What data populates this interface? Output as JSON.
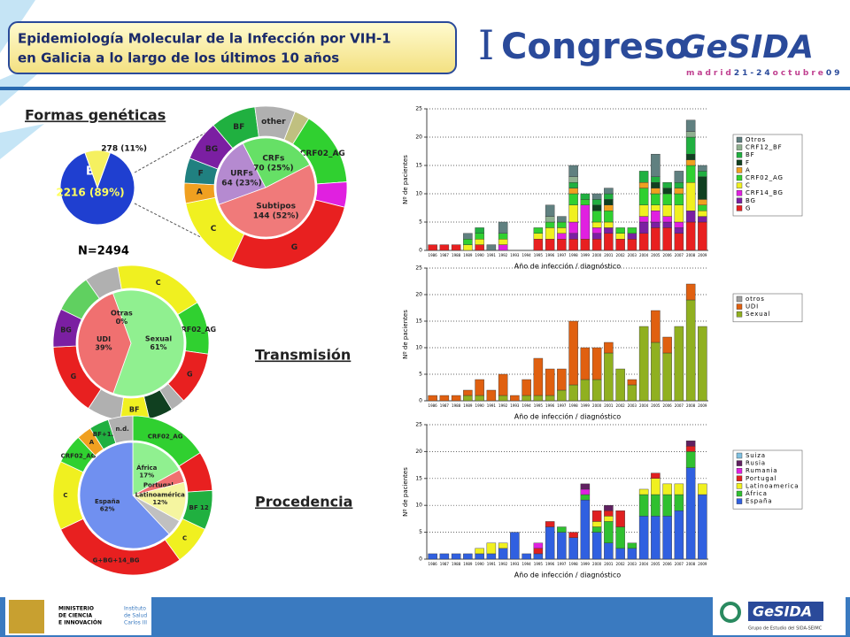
{
  "header": {
    "title_lines": [
      "Epidemiología Molecular de la Infección por VIH-1",
      "en Galicia a lo largo de los últimos 10 años"
    ]
  },
  "logo": {
    "numeral": "I",
    "word": "Congreso",
    "brand": "GeSIDA",
    "city": "madrid",
    "dates": "21-24",
    "month": "octubre",
    "year": "09"
  },
  "sections": {
    "forms": "Formas genéticas",
    "transmission": "Transmisión",
    "origin": "Procedencia",
    "n": "N=2494"
  },
  "footer": {
    "ministry": [
      "MINISTERIO",
      "DE CIENCIA",
      "E INNOVACIÓN"
    ],
    "institute": [
      "Instituto",
      "de Salud",
      "Carlos III"
    ],
    "brand": "GeSIDA",
    "group": "Grupo de Estudio del SIDA-SEIMC"
  },
  "chart_data": [
    {
      "type": "pie",
      "categories": [
        "B",
        null
      ],
      "values": [
        89,
        11
      ],
      "value_labels": [
        "2216 (89%)",
        "278 (11%)"
      ],
      "colors": [
        "#1f3fd0",
        "#f5f060"
      ]
    },
    {
      "type": "donut",
      "inner": {
        "categories": [
          "URFs",
          "CRFs",
          "Subtipos"
        ],
        "values": [
          23,
          25,
          52
        ],
        "value_labels": [
          "64 (23%)",
          "70 (25%)",
          "144 (52%)"
        ],
        "colors": [
          "#b58ad0",
          "#66e066",
          "#f07a7a"
        ]
      },
      "outer": {
        "categories": [
          "BF",
          "other",
          null,
          "CRF02_AG",
          null,
          "G",
          "C",
          "A",
          "F",
          "BG"
        ],
        "values": [
          9,
          8,
          3,
          15,
          5,
          28,
          15,
          4,
          5,
          8
        ],
        "colors": [
          "#20b040",
          "#b0b0b0",
          "#c0c080",
          "#30d030",
          "#e020e0",
          "#e82020",
          "#f0f020",
          "#f0a020",
          "#208080",
          "#7b1fa2"
        ]
      }
    },
    {
      "type": "donut",
      "inner": {
        "categories": [
          "Sexual",
          "UDI",
          "Otras"
        ],
        "values": [
          61,
          39,
          0
        ],
        "value_labels": [
          "61%",
          "39%",
          "0%"
        ],
        "colors": [
          "#90f090",
          "#f07070",
          "#c0c0c0"
        ]
      },
      "outer": {
        "categories": [
          "C",
          "CRF02_AG",
          "G",
          null,
          null,
          "BF",
          null,
          "G",
          "BG",
          null,
          null
        ],
        "values": [
          19,
          11,
          11,
          3,
          5,
          6,
          7,
          15,
          8,
          8,
          7
        ],
        "colors": [
          "#f0f020",
          "#30d030",
          "#e82020",
          "#b0b0b0",
          "#104020",
          "#f0f020",
          "#b0b0b0",
          "#e82020",
          "#7b1fa2",
          "#60d060",
          "#b0b0b0"
        ]
      }
    },
    {
      "type": "donut",
      "inner": {
        "categories": [
          "África",
          "Portugal",
          "Latinoamérica",
          null,
          "España"
        ],
        "values": [
          17,
          4,
          12,
          5,
          62
        ],
        "value_labels": [
          "17%",
          null,
          "12%",
          null,
          "62%"
        ],
        "colors": [
          "#90f090",
          "#f07070",
          "#f5f5a0",
          "#c0c0c0",
          "#7090f0"
        ]
      },
      "outer": {
        "categories": [
          "CRF02_AG",
          null,
          "BF 12",
          "C",
          "G+BG+14_BG",
          "C",
          "CRF02_AG",
          "A",
          "BF+12",
          "n.d."
        ],
        "values": [
          16,
          8,
          8,
          8,
          28,
          14,
          6,
          3,
          4,
          5
        ],
        "colors": [
          "#30d030",
          "#e82020",
          "#20b040",
          "#f0f020",
          "#e82020",
          "#f0f020",
          "#30d030",
          "#f0a020",
          "#20b040",
          "#b0b0b0"
        ]
      }
    },
    {
      "type": "bar",
      "xlabel": "Año de infección / diagnóstico",
      "ylabel": "Nº de pacientes",
      "ylim": [
        0,
        25
      ],
      "yticks": [
        0,
        5,
        10,
        15,
        20,
        25
      ],
      "grid": true,
      "categories": [
        "1986",
        "1987",
        "1988",
        "1989",
        "1990",
        "1991",
        "1992",
        "1993",
        "1994",
        "1995",
        "1996",
        "1997",
        "1998",
        "1999",
        "2000",
        "2001",
        "2002",
        "2003",
        "2004",
        "2005",
        "2006",
        "2007",
        "2008",
        "2009"
      ],
      "series": [
        {
          "name": "G",
          "color": "#e82020",
          "values": [
            1,
            1,
            1,
            0,
            1,
            0,
            0,
            0,
            0,
            2,
            2,
            2,
            2,
            2,
            2,
            3,
            2,
            2,
            3,
            4,
            4,
            3,
            5,
            5
          ]
        },
        {
          "name": "BG",
          "color": "#7b1fa2",
          "values": [
            0,
            0,
            0,
            0,
            0,
            0,
            0,
            0,
            0,
            0,
            0,
            0,
            1,
            0,
            1,
            1,
            0,
            1,
            2,
            1,
            1,
            1,
            2,
            1
          ]
        },
        {
          "name": "CRF14_BG",
          "color": "#e020e0",
          "values": [
            0,
            0,
            0,
            0,
            0,
            0,
            1,
            0,
            0,
            0,
            0,
            1,
            2,
            6,
            1,
            0,
            0,
            0,
            1,
            2,
            1,
            1,
            0,
            0
          ]
        },
        {
          "name": "C",
          "color": "#f0f020",
          "values": [
            0,
            0,
            0,
            1,
            1,
            0,
            1,
            0,
            0,
            1,
            2,
            1,
            3,
            0,
            1,
            1,
            1,
            0,
            2,
            1,
            2,
            3,
            5,
            1
          ]
        },
        {
          "name": "CRF02_AG",
          "color": "#30d030",
          "values": [
            0,
            0,
            0,
            1,
            1,
            0,
            1,
            0,
            0,
            1,
            1,
            1,
            2,
            1,
            2,
            2,
            1,
            1,
            3,
            2,
            2,
            2,
            3,
            1
          ]
        },
        {
          "name": "A",
          "color": "#f0a020",
          "values": [
            0,
            0,
            0,
            0,
            0,
            0,
            0,
            0,
            0,
            0,
            0,
            0,
            1,
            0,
            0,
            1,
            0,
            0,
            1,
            1,
            0,
            1,
            1,
            1
          ]
        },
        {
          "name": "F",
          "color": "#104020",
          "values": [
            0,
            0,
            0,
            0,
            0,
            0,
            0,
            0,
            0,
            0,
            0,
            0,
            0,
            0,
            1,
            1,
            0,
            0,
            0,
            1,
            1,
            0,
            1,
            4
          ]
        },
        {
          "name": "BF",
          "color": "#20b040",
          "values": [
            0,
            0,
            0,
            0,
            1,
            0,
            0,
            0,
            0,
            0,
            0,
            0,
            1,
            1,
            1,
            1,
            0,
            0,
            2,
            1,
            1,
            1,
            3,
            1
          ]
        },
        {
          "name": "CRF12_BF",
          "color": "#90b090",
          "values": [
            0,
            0,
            0,
            0,
            0,
            0,
            0,
            0,
            0,
            0,
            1,
            0,
            1,
            0,
            0,
            0,
            0,
            0,
            0,
            0,
            0,
            0,
            1,
            0
          ]
        },
        {
          "name": "Otros",
          "color": "#608080",
          "values": [
            0,
            0,
            0,
            1,
            0,
            1,
            2,
            0,
            0,
            0,
            2,
            1,
            2,
            0,
            1,
            1,
            0,
            0,
            0,
            4,
            0,
            2,
            2,
            1
          ]
        }
      ]
    },
    {
      "type": "bar",
      "xlabel": "Año de infección / diagnóstico",
      "ylabel": "Nº de pacientes",
      "ylim": [
        0,
        25
      ],
      "yticks": [
        0,
        5,
        10,
        15,
        20,
        25
      ],
      "grid": true,
      "categories": [
        "1986",
        "1987",
        "1988",
        "1989",
        "1990",
        "1991",
        "1992",
        "1993",
        "1994",
        "1995",
        "1996",
        "1997",
        "1998",
        "1999",
        "2000",
        "2001",
        "2002",
        "2003",
        "2004",
        "2005",
        "2006",
        "2007",
        "2008",
        "2009"
      ],
      "series": [
        {
          "name": "Sexual",
          "color": "#90b020",
          "values": [
            0,
            0,
            0,
            1,
            1,
            0,
            1,
            0,
            1,
            1,
            1,
            2,
            3,
            4,
            4,
            9,
            6,
            3,
            14,
            11,
            9,
            14,
            19,
            14
          ]
        },
        {
          "name": "UDI",
          "color": "#e06010",
          "values": [
            1,
            1,
            1,
            1,
            3,
            2,
            4,
            1,
            3,
            7,
            5,
            4,
            12,
            6,
            6,
            2,
            0,
            1,
            0,
            6,
            3,
            0,
            3,
            0
          ]
        },
        {
          "name": "otros",
          "color": "#a0a0a0",
          "values": [
            0,
            0,
            0,
            0,
            0,
            0,
            0,
            0,
            0,
            0,
            0,
            0,
            0,
            0,
            0,
            0,
            0,
            0,
            0,
            0,
            0,
            0,
            0,
            0
          ]
        }
      ]
    },
    {
      "type": "bar",
      "xlabel": "Año de infección / diagnóstico",
      "ylabel": "Nº de pacientes",
      "ylim": [
        0,
        25
      ],
      "yticks": [
        0,
        5,
        10,
        15,
        20,
        25
      ],
      "grid": true,
      "categories": [
        "1986",
        "1987",
        "1988",
        "1989",
        "1990",
        "1991",
        "1992",
        "1993",
        "1994",
        "1995",
        "1996",
        "1997",
        "1998",
        "1999",
        "2000",
        "2001",
        "2002",
        "2003",
        "2004",
        "2005",
        "2006",
        "2007",
        "2008",
        "2009"
      ],
      "series": [
        {
          "name": "España",
          "color": "#3060e0",
          "values": [
            1,
            1,
            1,
            1,
            1,
            1,
            2,
            5,
            1,
            1,
            6,
            5,
            4,
            11,
            5,
            3,
            2,
            2,
            8,
            8,
            8,
            9,
            17,
            12
          ]
        },
        {
          "name": "África",
          "color": "#30c030",
          "values": [
            0,
            0,
            0,
            0,
            0,
            0,
            0,
            0,
            0,
            0,
            0,
            1,
            0,
            1,
            1,
            4,
            4,
            1,
            4,
            4,
            4,
            3,
            3,
            0
          ]
        },
        {
          "name": "Latinoamerica",
          "color": "#f0f020",
          "values": [
            0,
            0,
            0,
            0,
            1,
            2,
            1,
            0,
            0,
            0,
            0,
            0,
            0,
            0,
            1,
            1,
            0,
            0,
            1,
            3,
            2,
            2,
            0,
            2
          ]
        },
        {
          "name": "Portugal",
          "color": "#e02020",
          "values": [
            0,
            0,
            0,
            0,
            0,
            0,
            0,
            0,
            0,
            1,
            1,
            0,
            1,
            0,
            2,
            1,
            3,
            0,
            0,
            1,
            0,
            0,
            1,
            0
          ]
        },
        {
          "name": "Rumania",
          "color": "#e020e0",
          "values": [
            0,
            0,
            0,
            0,
            0,
            0,
            0,
            0,
            0,
            1,
            0,
            0,
            0,
            1,
            0,
            0,
            0,
            0,
            0,
            0,
            0,
            0,
            0,
            0
          ]
        },
        {
          "name": "Rusia",
          "color": "#602060",
          "values": [
            0,
            0,
            0,
            0,
            0,
            0,
            0,
            0,
            0,
            0,
            0,
            0,
            0,
            1,
            0,
            1,
            0,
            0,
            0,
            0,
            0,
            0,
            1,
            0
          ]
        },
        {
          "name": "Suiza",
          "color": "#80c0e0",
          "values": [
            0,
            0,
            0,
            0,
            0,
            0,
            0,
            0,
            0,
            0,
            0,
            0,
            0,
            0,
            0,
            0,
            0,
            0,
            0,
            0,
            0,
            0,
            0,
            0
          ]
        }
      ]
    }
  ]
}
